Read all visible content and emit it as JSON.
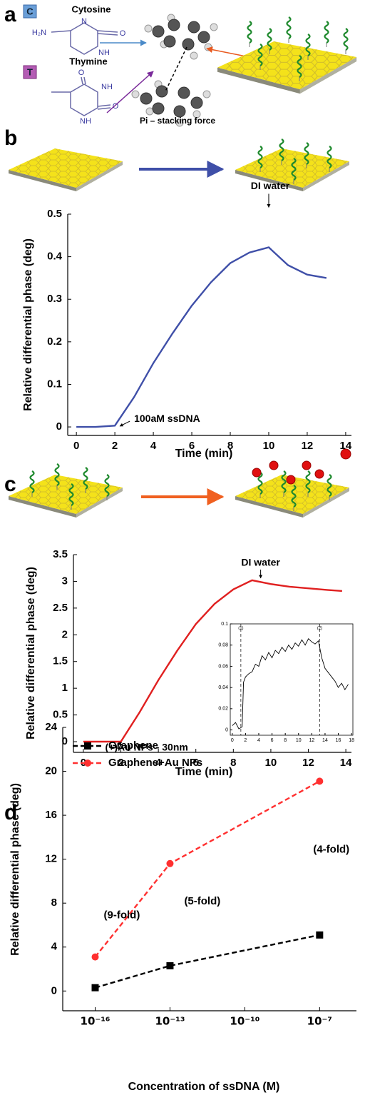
{
  "panel_labels": [
    "a",
    "b",
    "c",
    "d"
  ],
  "panel_a": {
    "cytosine": {
      "badge": "C",
      "name": "Cytosine",
      "atoms": [
        "H₂N",
        "N",
        "O",
        "NH"
      ]
    },
    "thymine": {
      "badge": "T",
      "name": "Thymine",
      "atoms": [
        "O",
        "NH",
        "O",
        "NH"
      ]
    },
    "caption": "Pi – stacking force"
  },
  "chart_data": [
    {
      "type": "line",
      "xlabel": "Time (min)",
      "ylabel": "Relative differential phase (deg)",
      "x": [
        0,
        1,
        2,
        3,
        4,
        5,
        6,
        7,
        8,
        9,
        10,
        11,
        12,
        13
      ],
      "values": [
        0,
        0,
        0.003,
        0.07,
        0.15,
        0.22,
        0.285,
        0.34,
        0.385,
        0.41,
        0.422,
        0.38,
        0.358,
        0.35
      ],
      "color": "#3f4fa8",
      "xlim": [
        -0.45,
        14.3
      ],
      "xticks": [
        0,
        2,
        4,
        6,
        8,
        10,
        12,
        14
      ],
      "ylim": [
        -0.02,
        0.5
      ],
      "yticks": [
        0,
        0.1,
        0.2,
        0.3,
        0.4,
        0.5
      ],
      "annotations": [
        {
          "text": "DI water",
          "x": 10,
          "y": 0.422
        },
        {
          "text": "100aM ssDNA",
          "x": 2,
          "y": 0
        }
      ]
    },
    {
      "type": "line",
      "xlabel": "Time (min)",
      "ylabel": "Relative differential phase (deg)",
      "x": [
        0,
        1,
        2,
        3,
        4,
        5,
        6,
        7,
        8,
        9,
        10,
        11,
        12,
        13,
        13.8
      ],
      "values": [
        0,
        0,
        0,
        0.55,
        1.15,
        1.7,
        2.2,
        2.58,
        2.85,
        3.02,
        2.95,
        2.9,
        2.87,
        2.84,
        2.82
      ],
      "color": "#e02020",
      "xlim": [
        -0.53,
        14.3
      ],
      "xticks": [
        0,
        2,
        4,
        6,
        8,
        10,
        12,
        14
      ],
      "ylim": [
        -0.2,
        3.5
      ],
      "yticks": [
        0,
        0.5,
        1,
        1.5,
        2,
        2.5,
        3,
        3.5
      ],
      "annotations": [
        {
          "text": "DI water",
          "x": 9,
          "y": 3.02
        },
        {
          "text": "(+)Au NPs - 30nm",
          "x": 2,
          "y": 0
        }
      ]
    },
    {
      "type": "line",
      "box": true,
      "x": [
        0,
        0.5,
        1,
        1.5,
        1.7,
        2,
        2.5,
        3,
        3.5,
        4,
        4.5,
        5,
        5.5,
        6,
        6.5,
        7,
        7.5,
        8,
        8.5,
        9,
        9.5,
        10,
        10.5,
        11,
        11.5,
        12,
        12.5,
        13,
        13.5,
        14,
        14.5,
        15,
        15.5,
        16,
        16.5,
        17,
        17.5
      ],
      "values": [
        0.004,
        0.007,
        0.001,
        0.003,
        0.045,
        0.05,
        0.053,
        0.055,
        0.062,
        0.06,
        0.07,
        0.066,
        0.073,
        0.068,
        0.075,
        0.072,
        0.078,
        0.074,
        0.08,
        0.076,
        0.082,
        0.079,
        0.085,
        0.08,
        0.086,
        0.083,
        0.081,
        0.084,
        0.068,
        0.058,
        0.054,
        0.05,
        0.046,
        0.04,
        0.044,
        0.038,
        0.043
      ],
      "color": "#000000",
      "xlim": [
        -0.3,
        18.2
      ],
      "xticks": [
        0,
        2,
        4,
        6,
        8,
        10,
        12,
        14,
        16,
        18
      ],
      "ylim": [
        -0.005,
        0.1
      ],
      "yticks": [
        0,
        0.02,
        0.04,
        0.06,
        0.08,
        0.1
      ],
      "markers": [
        {
          "x": 1.3,
          "label": "(1)"
        },
        {
          "x": 13.2,
          "label": "(2)"
        }
      ]
    },
    {
      "type": "line",
      "xscale": "log",
      "legend": "upper left",
      "xlabel": "Concentration of ssDNA (M)",
      "ylabel": "Relative differential phase (deg)",
      "x": [
        1e-16,
        1e-13,
        1e-07
      ],
      "series": [
        {
          "name": "Graphene",
          "color": "#000000",
          "marker": "square",
          "dashed": true,
          "values": [
            0.3,
            2.3,
            5.1
          ]
        },
        {
          "name": "Graphene+Au NPs",
          "color": "#ff3030",
          "marker": "circle",
          "dashed": true,
          "values": [
            3.1,
            11.6,
            19.1
          ]
        }
      ],
      "xlim": [
        5e-18,
        3e-06
      ],
      "xticks": [
        {
          "value": 1e-16,
          "label": "10⁻¹⁶"
        },
        {
          "value": 1e-13,
          "label": "10⁻¹³"
        },
        {
          "value": 1e-10,
          "label": "10⁻¹⁰"
        },
        {
          "value": 1e-07,
          "label": "10⁻⁷"
        }
      ],
      "ylim": [
        -1.8,
        24
      ],
      "yticks": [
        0,
        4,
        8,
        12,
        16,
        20,
        24
      ],
      "annotations": [
        "(9-fold)",
        "(5-fold)",
        "(4-fold)"
      ]
    }
  ]
}
